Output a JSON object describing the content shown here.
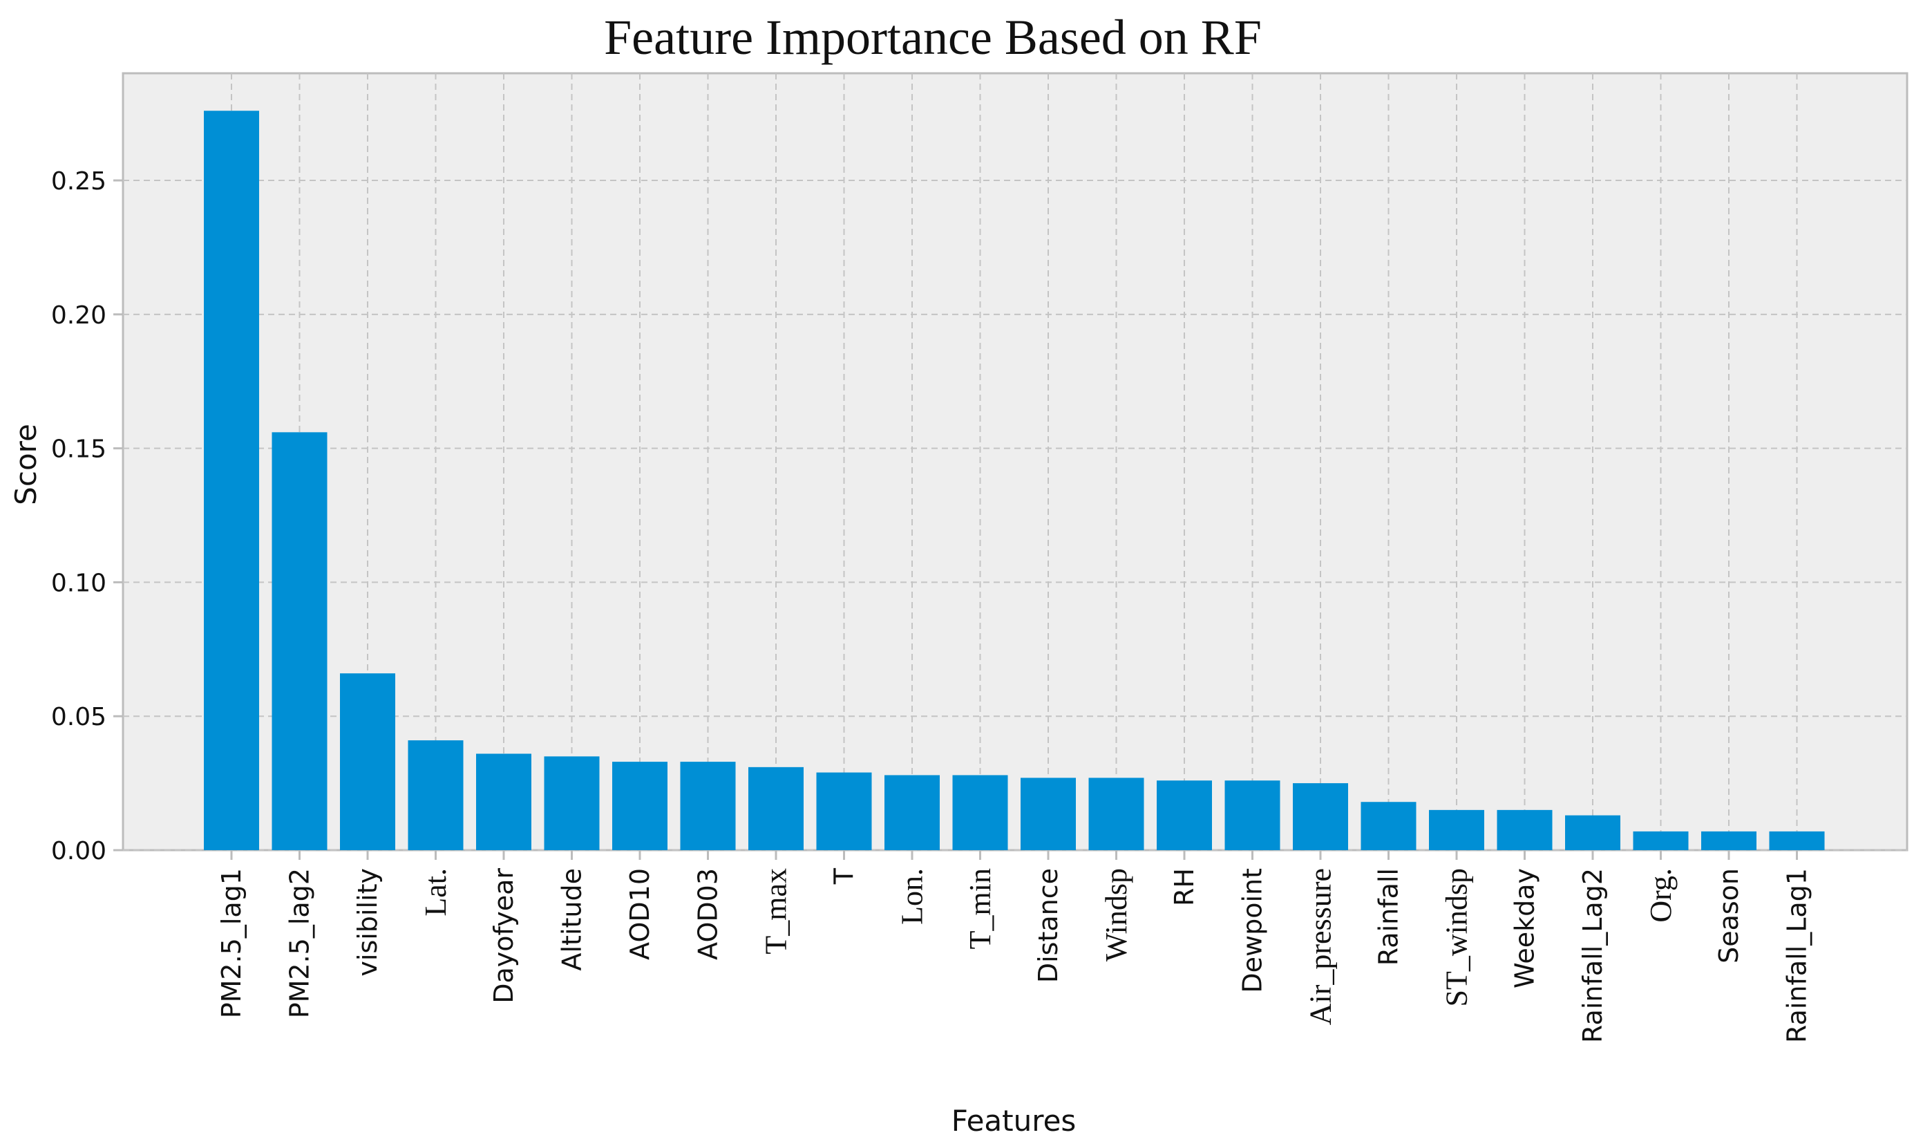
{
  "chart_data": {
    "type": "bar",
    "title": "Feature Importance Based on RF",
    "xlabel": "Features",
    "ylabel": "Score",
    "ylim": [
      0,
      0.29
    ],
    "yticks": [
      "0.00",
      "0.05",
      "0.10",
      "0.15",
      "0.20",
      "0.25"
    ],
    "ytick_values": [
      0,
      0.05,
      0.1,
      0.15,
      0.2,
      0.25
    ],
    "grid": true,
    "categories": [
      "PM2.5_lag1",
      "PM2.5_lag2",
      "visibility",
      "Lat.",
      "Dayofyear",
      "Altitude",
      "AOD10",
      "AOD03",
      "T_max",
      "T",
      "Lon.",
      "T_min",
      "Distance",
      "Windsp",
      "RH",
      "Dewpoint",
      "Air_pressure",
      "Rainfall",
      "ST_windsp",
      "Weekday",
      "Rainfall_Lag2",
      "Org.",
      "Season",
      "Rainfall_Lag1"
    ],
    "label_styles": [
      "sans",
      "sans",
      "sans",
      "serif",
      "sans",
      "sans",
      "sans",
      "sans",
      "serif",
      "sans",
      "serif",
      "serif",
      "sans",
      "serif",
      "sans",
      "sans",
      "serif",
      "sans",
      "serif",
      "sans",
      "sans",
      "serif",
      "sans",
      "sans"
    ],
    "values": [
      0.276,
      0.156,
      0.066,
      0.041,
      0.036,
      0.035,
      0.033,
      0.033,
      0.031,
      0.029,
      0.028,
      0.028,
      0.027,
      0.027,
      0.026,
      0.026,
      0.025,
      0.018,
      0.015,
      0.015,
      0.013,
      0.007,
      0.007,
      0.007
    ]
  },
  "colors": {
    "bar": "#008fd5",
    "plot_background": "#eeeeee",
    "frame": "#bcbcbc",
    "grid": "#c4c4c4"
  }
}
